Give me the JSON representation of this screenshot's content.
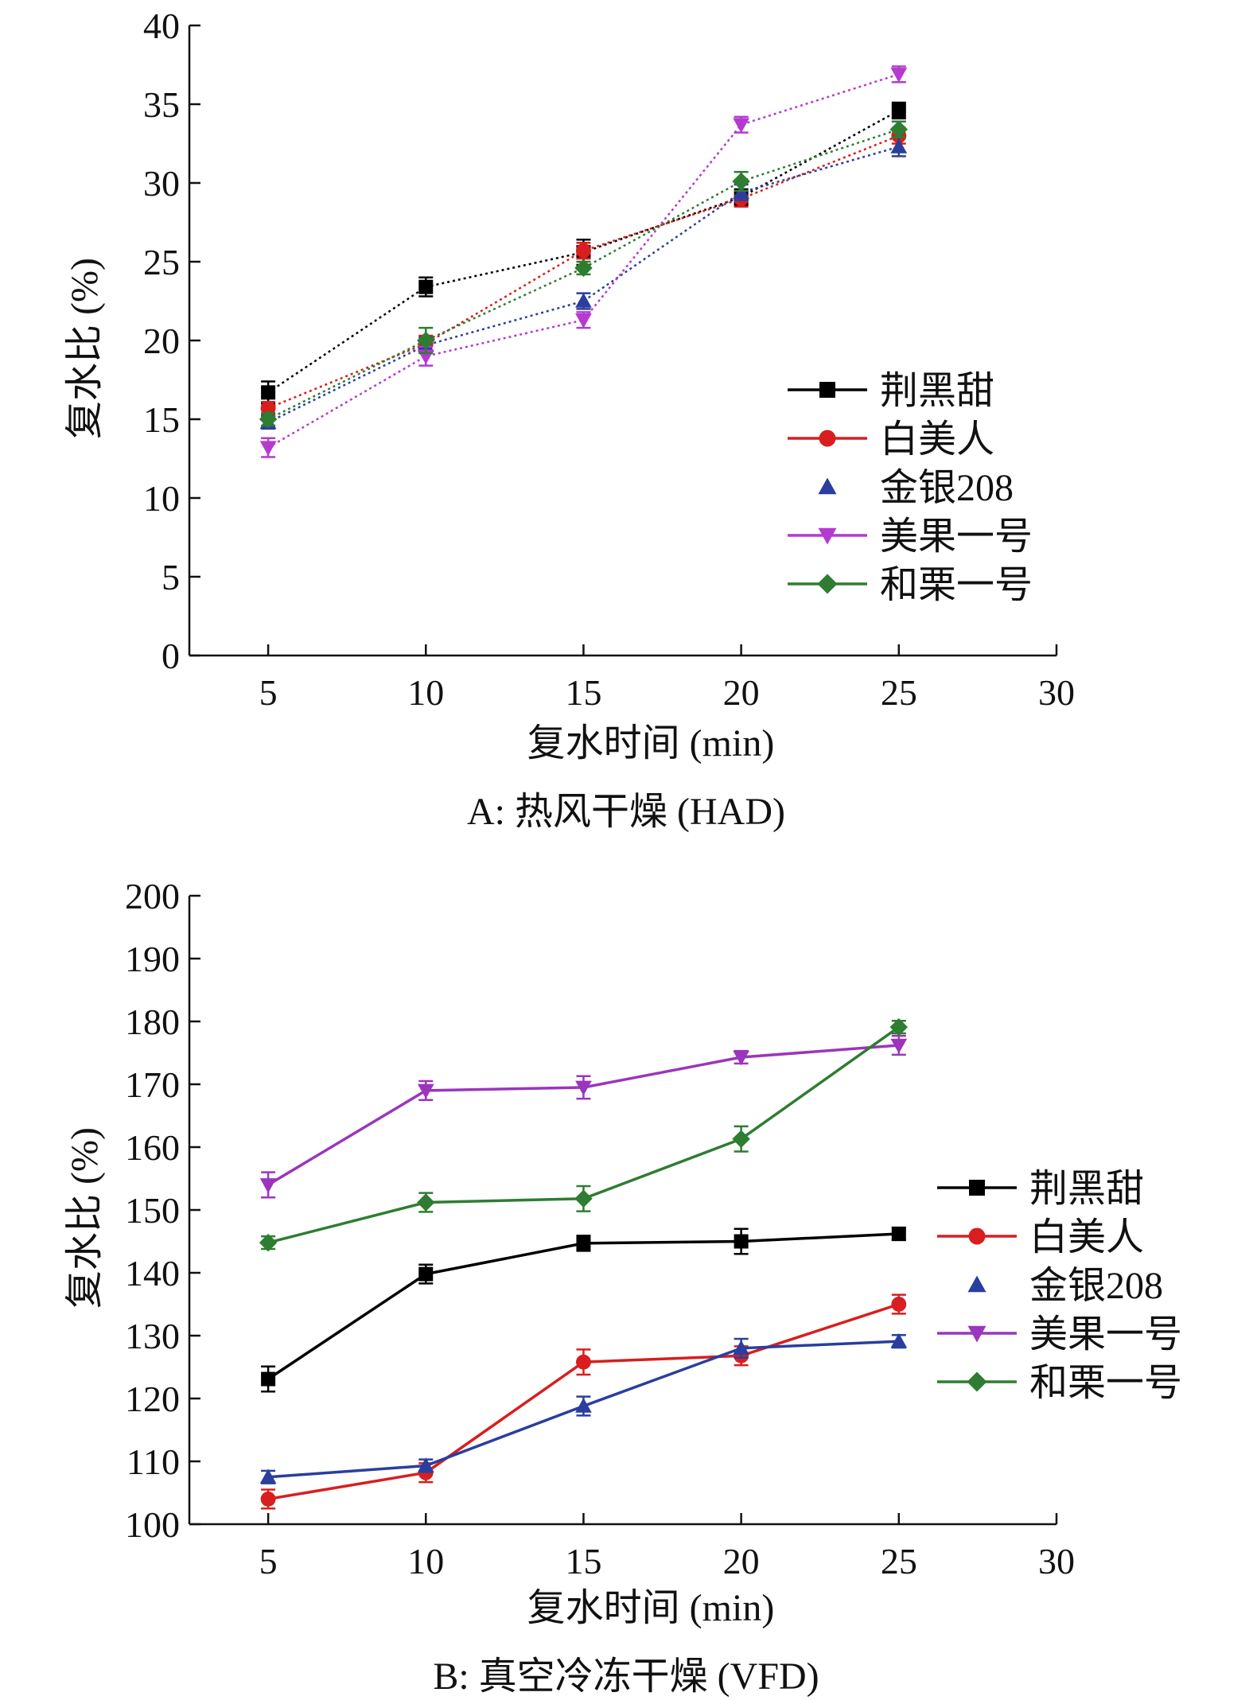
{
  "chart_data": [
    {
      "type": "line",
      "caption": "A: 热风干燥 (HAD)",
      "xlabel": "复水时间 (min)",
      "ylabel": "复水比 (%)",
      "xlim": [
        2.5,
        30
      ],
      "ylim": [
        0,
        40
      ],
      "xticks": [
        5,
        10,
        15,
        20,
        25,
        30
      ],
      "yticks": [
        0,
        5,
        10,
        15,
        20,
        25,
        30,
        35,
        40
      ],
      "line_style": "dotted",
      "legend_position": "right-center",
      "x": [
        5,
        10,
        15,
        20,
        25
      ],
      "series": [
        {
          "name": "荆黑甜",
          "color": "#000000",
          "marker": "square",
          "values": [
            16.7,
            23.4,
            25.6,
            29.1,
            34.6
          ],
          "errors": [
            0.7,
            0.6,
            0.8,
            0.5,
            0.5
          ]
        },
        {
          "name": "白美人",
          "color": "#d81e1e",
          "marker": "circle",
          "values": [
            15.7,
            19.8,
            25.7,
            29.0,
            33.0
          ],
          "errors": [
            0.4,
            0.5,
            0.5,
            0.5,
            0.5
          ]
        },
        {
          "name": "金银208",
          "color": "#2a3e9e",
          "marker": "triangle-up",
          "values": [
            14.8,
            19.7,
            22.5,
            29.4,
            32.3
          ],
          "errors": [
            0.4,
            0.5,
            0.5,
            0.5,
            0.6
          ]
        },
        {
          "name": "美果一号",
          "color": "#b43ad0",
          "marker": "triangle-down",
          "values": [
            13.2,
            19.0,
            21.3,
            33.7,
            36.9
          ],
          "errors": [
            0.6,
            0.6,
            0.5,
            0.5,
            0.5
          ]
        },
        {
          "name": "和栗一号",
          "color": "#2e7d32",
          "marker": "diamond",
          "values": [
            15.0,
            20.0,
            24.6,
            30.1,
            33.4
          ],
          "errors": [
            0.4,
            0.8,
            0.4,
            0.6,
            0.5
          ]
        }
      ]
    },
    {
      "type": "line",
      "caption": "B: 真空冷冻干燥 (VFD)",
      "xlabel": "复水时间 (min)",
      "ylabel": "复水比 (%)",
      "xlim": [
        2.5,
        30
      ],
      "ylim": [
        100,
        200
      ],
      "xticks": [
        5,
        10,
        15,
        20,
        25,
        30
      ],
      "yticks": [
        100,
        110,
        120,
        130,
        140,
        150,
        160,
        170,
        180,
        190,
        200
      ],
      "line_style": "solid",
      "legend_position": "right-center",
      "x": [
        5,
        10,
        15,
        20,
        25
      ],
      "series": [
        {
          "name": "荆黑甜",
          "color": "#000000",
          "marker": "square",
          "values": [
            123.1,
            139.8,
            144.7,
            145.0,
            146.2
          ],
          "errors": [
            2.0,
            1.5,
            1.2,
            2.0,
            1.0
          ]
        },
        {
          "name": "白美人",
          "color": "#d81e1e",
          "marker": "circle",
          "values": [
            104.0,
            108.2,
            125.8,
            126.8,
            135.0
          ],
          "errors": [
            1.5,
            1.5,
            2.0,
            1.5,
            1.5
          ]
        },
        {
          "name": "金银208",
          "color": "#2a3e9e",
          "marker": "triangle-up",
          "values": [
            107.5,
            109.3,
            118.8,
            128.0,
            129.1
          ],
          "errors": [
            1.0,
            1.0,
            1.5,
            1.5,
            1.0
          ]
        },
        {
          "name": "美果一号",
          "color": "#9b35bd",
          "marker": "triangle-down",
          "values": [
            154.0,
            169.0,
            169.5,
            174.3,
            176.2
          ],
          "errors": [
            2.0,
            1.5,
            1.8,
            1.0,
            1.5
          ]
        },
        {
          "name": "和栗一号",
          "color": "#2e7d32",
          "marker": "diamond",
          "values": [
            144.8,
            151.2,
            151.8,
            161.3,
            179.1
          ],
          "errors": [
            1.0,
            1.5,
            2.0,
            2.0,
            1.0
          ]
        }
      ]
    }
  ]
}
